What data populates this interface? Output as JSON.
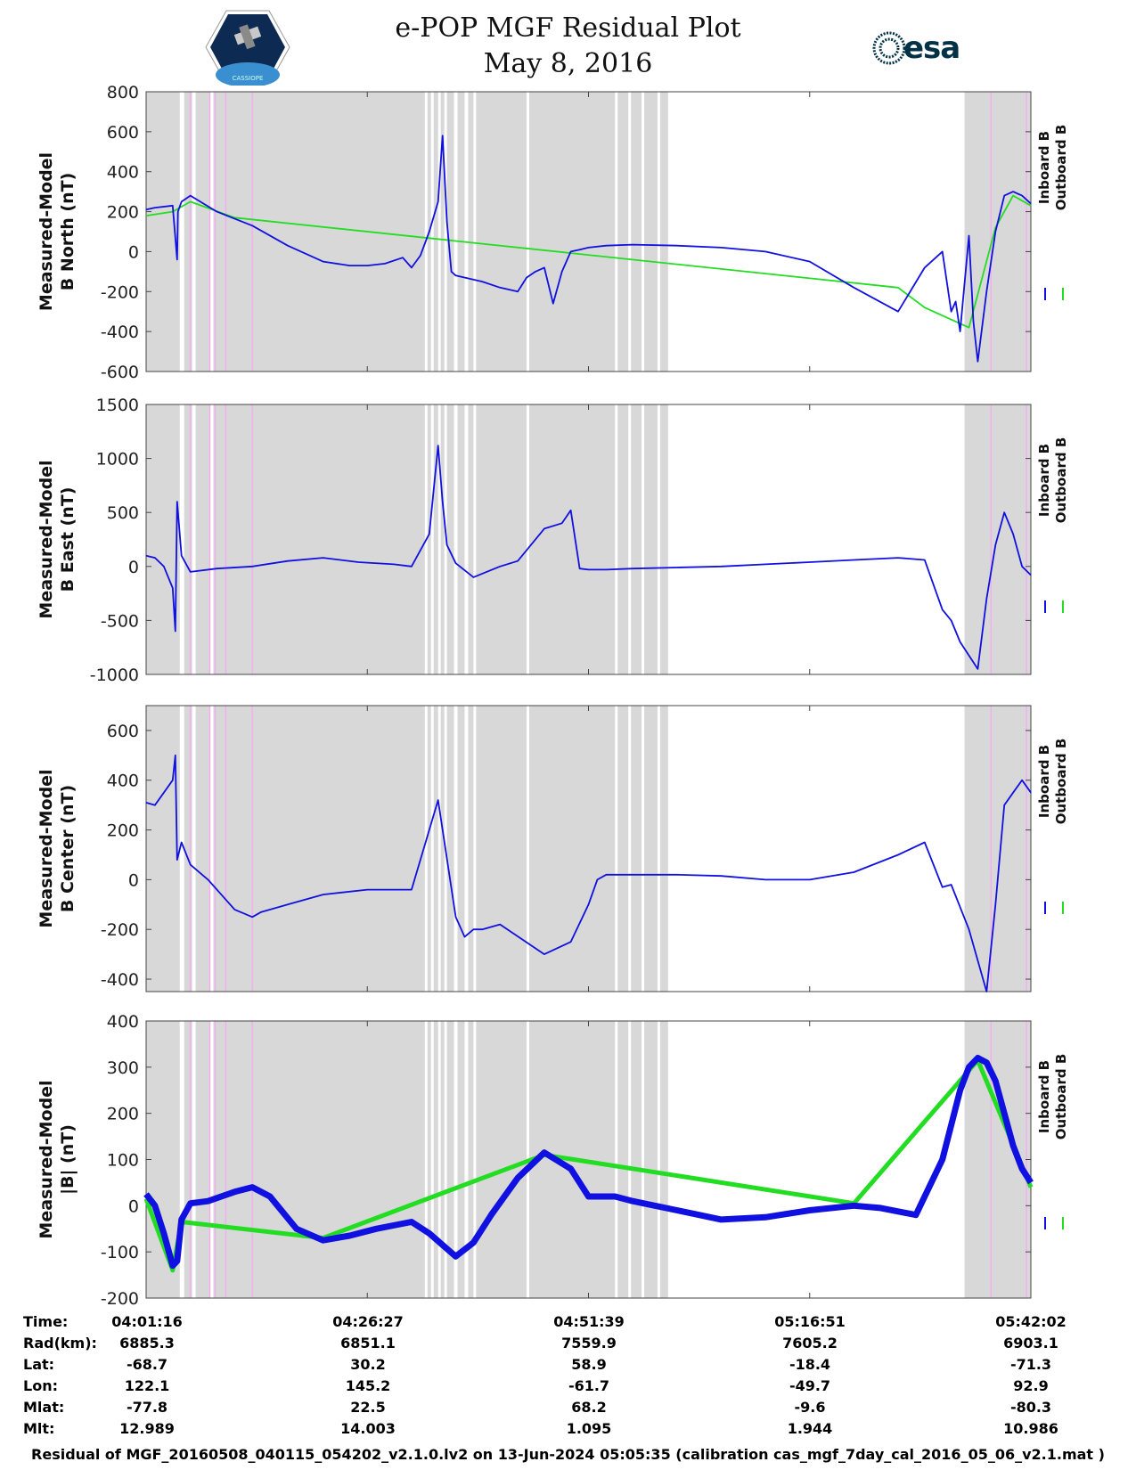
{
  "header": {
    "title_line1": "e-POP MGF Residual Plot",
    "title_line2": "May 8, 2016",
    "right_logo_text": "esa",
    "left_logo_text": "CASSIOPE"
  },
  "colors": {
    "inboard": "#1010e0",
    "outboard": "#22dd22",
    "shade": "#d8d8d8",
    "pink": "#f0b0f0",
    "white_gap": "#ffffff"
  },
  "footer": "Residual of MGF_20160508_040115_054202_v2.1.0.lv2 on 13-Jun-2024 05:05:35 (calibration cas_mgf_7day_cal_2016_05_06_v2.1.mat )",
  "table": {
    "row_labels": [
      "Time:",
      "Rad(km):",
      "Lat:",
      "Lon:",
      "Mlat:",
      "Mlt:"
    ],
    "columns": [
      [
        "04:01:16",
        "6885.3",
        "-68.7",
        "122.1",
        "-77.8",
        "12.989"
      ],
      [
        "04:26:27",
        "6851.1",
        "30.2",
        "145.2",
        "22.5",
        "14.003"
      ],
      [
        "04:51:39",
        "7559.9",
        "58.9",
        "-61.7",
        "68.2",
        "1.095"
      ],
      [
        "05:16:51",
        "7605.2",
        "-18.4",
        "-49.7",
        "-9.6",
        "1.944"
      ],
      [
        "05:42:02",
        "6903.1",
        "-71.3",
        "92.9",
        "-80.3",
        "10.986"
      ]
    ]
  },
  "chart_data": [
    {
      "type": "line",
      "panel": "b-north",
      "ylabel_line1": "Measured-Model",
      "ylabel_line2": "B North (nT)",
      "ylim": [
        -600,
        800
      ],
      "yticks": [
        800,
        600,
        400,
        200,
        0,
        -200,
        -400,
        -600
      ],
      "legend": [
        "Inboard B",
        "Outboard B"
      ],
      "series": [
        {
          "name": "Inboard B",
          "x": [
            0,
            0.01,
            0.03,
            0.035,
            0.036,
            0.04,
            0.05,
            0.08,
            0.12,
            0.16,
            0.2,
            0.23,
            0.25,
            0.27,
            0.29,
            0.3,
            0.31,
            0.32,
            0.33,
            0.335,
            0.34,
            0.345,
            0.35,
            0.38,
            0.4,
            0.42,
            0.43,
            0.44,
            0.45,
            0.46,
            0.47,
            0.48,
            0.49,
            0.5,
            0.52,
            0.55,
            0.6,
            0.65,
            0.7,
            0.75,
            0.8,
            0.85,
            0.88,
            0.9,
            0.91,
            0.915,
            0.92,
            0.93,
            0.935,
            0.94,
            0.95,
            0.96,
            0.97,
            0.98,
            0.99,
            1.0
          ],
          "y": [
            210,
            220,
            230,
            -40,
            200,
            250,
            280,
            200,
            130,
            30,
            -50,
            -70,
            -70,
            -60,
            -30,
            -80,
            -20,
            100,
            250,
            580,
            150,
            -100,
            -120,
            -150,
            -180,
            -200,
            -130,
            -100,
            -80,
            -260,
            -100,
            0,
            10,
            20,
            30,
            35,
            30,
            20,
            0,
            -50,
            -180,
            -300,
            -80,
            0,
            -300,
            -250,
            -400,
            80,
            -350,
            -550,
            -200,
            100,
            280,
            300,
            280,
            240
          ]
        },
        {
          "name": "Outboard B",
          "x": [
            0,
            0.03,
            0.05,
            0.1,
            0.85,
            0.88,
            0.93,
            0.96,
            0.98,
            1.0
          ],
          "y": [
            180,
            200,
            250,
            170,
            -180,
            -280,
            -380,
            120,
            280,
            230
          ]
        }
      ]
    },
    {
      "type": "line",
      "panel": "b-east",
      "ylabel_line1": "Measured-Model",
      "ylabel_line2": "B East (nT)",
      "ylim": [
        -1000,
        1500
      ],
      "yticks": [
        1500,
        1000,
        500,
        0,
        -500,
        -1000
      ],
      "legend": [
        "Inboard B",
        "Outboard B"
      ],
      "series": [
        {
          "name": "Inboard B",
          "x": [
            0,
            0.01,
            0.02,
            0.03,
            0.033,
            0.035,
            0.04,
            0.05,
            0.08,
            0.12,
            0.16,
            0.2,
            0.24,
            0.28,
            0.3,
            0.32,
            0.33,
            0.335,
            0.34,
            0.35,
            0.37,
            0.4,
            0.42,
            0.45,
            0.47,
            0.48,
            0.49,
            0.5,
            0.52,
            0.55,
            0.6,
            0.65,
            0.7,
            0.75,
            0.8,
            0.85,
            0.88,
            0.9,
            0.91,
            0.92,
            0.94,
            0.95,
            0.96,
            0.97,
            0.98,
            0.99,
            1.0
          ],
          "y": [
            100,
            80,
            0,
            -200,
            -600,
            600,
            100,
            -50,
            -20,
            0,
            50,
            80,
            40,
            20,
            0,
            300,
            1120,
            600,
            200,
            30,
            -100,
            0,
            50,
            350,
            400,
            520,
            -20,
            -30,
            -30,
            -20,
            -10,
            0,
            20,
            40,
            60,
            80,
            60,
            -400,
            -500,
            -700,
            -950,
            -300,
            200,
            500,
            300,
            0,
            -80
          ]
        }
      ]
    },
    {
      "type": "line",
      "panel": "b-center",
      "ylabel_line1": "Measured-Model",
      "ylabel_line2": "B Center (nT)",
      "ylim": [
        -450,
        700
      ],
      "yticks": [
        600,
        400,
        200,
        0,
        -200,
        -400
      ],
      "legend": [
        "Inboard B",
        "Outboard B"
      ],
      "series": [
        {
          "name": "Inboard B",
          "x": [
            0,
            0.01,
            0.02,
            0.03,
            0.033,
            0.035,
            0.04,
            0.05,
            0.07,
            0.1,
            0.12,
            0.13,
            0.16,
            0.2,
            0.25,
            0.3,
            0.33,
            0.35,
            0.36,
            0.37,
            0.38,
            0.4,
            0.45,
            0.48,
            0.5,
            0.51,
            0.52,
            0.55,
            0.6,
            0.65,
            0.7,
            0.75,
            0.8,
            0.85,
            0.88,
            0.9,
            0.91,
            0.93,
            0.95,
            0.96,
            0.97,
            0.98,
            0.99,
            1.0
          ],
          "y": [
            310,
            300,
            350,
            400,
            500,
            80,
            150,
            60,
            0,
            -120,
            -150,
            -130,
            -100,
            -60,
            -40,
            -40,
            320,
            -150,
            -230,
            -200,
            -200,
            -180,
            -300,
            -250,
            -100,
            0,
            20,
            20,
            20,
            15,
            0,
            0,
            30,
            100,
            150,
            -30,
            -20,
            -200,
            -450,
            -100,
            300,
            350,
            400,
            350
          ]
        }
      ]
    },
    {
      "type": "line",
      "panel": "b-magnitude",
      "ylabel_line1": "Measured-Model",
      "ylabel_line2": "|B| (nT)",
      "ylim": [
        -200,
        400
      ],
      "yticks": [
        400,
        300,
        200,
        100,
        0,
        -100,
        -200
      ],
      "legend": [
        "Inboard B",
        "Outboard B"
      ],
      "series": [
        {
          "name": "Inboard B",
          "x": [
            0,
            0.01,
            0.02,
            0.03,
            0.035,
            0.04,
            0.05,
            0.07,
            0.1,
            0.12,
            0.14,
            0.17,
            0.2,
            0.23,
            0.26,
            0.3,
            0.32,
            0.35,
            0.37,
            0.39,
            0.42,
            0.45,
            0.48,
            0.5,
            0.53,
            0.55,
            0.6,
            0.65,
            0.7,
            0.75,
            0.8,
            0.83,
            0.87,
            0.9,
            0.92,
            0.93,
            0.94,
            0.95,
            0.96,
            0.97,
            0.98,
            0.99,
            1.0
          ],
          "y": [
            25,
            0,
            -60,
            -130,
            -120,
            -30,
            5,
            10,
            30,
            40,
            20,
            -50,
            -75,
            -65,
            -50,
            -35,
            -60,
            -110,
            -80,
            -20,
            60,
            115,
            80,
            20,
            20,
            10,
            -10,
            -30,
            -25,
            -10,
            0,
            -5,
            -20,
            100,
            250,
            300,
            320,
            310,
            270,
            200,
            130,
            80,
            50
          ]
        },
        {
          "name": "Outboard B",
          "x": [
            0,
            0.03,
            0.04,
            0.2,
            0.45,
            0.8,
            0.94,
            1.0
          ],
          "y": [
            15,
            -140,
            -35,
            -70,
            110,
            5,
            315,
            40
          ]
        }
      ]
    }
  ]
}
